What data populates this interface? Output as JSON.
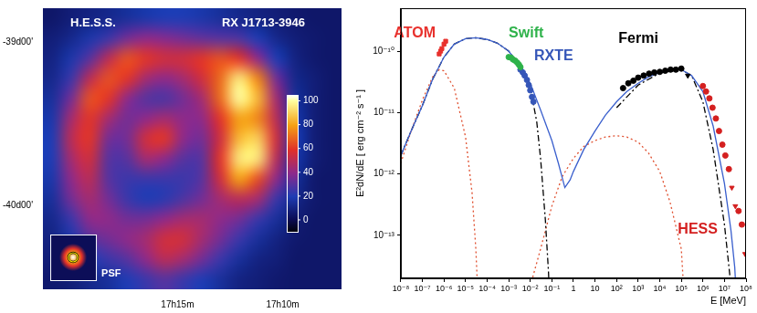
{
  "chart_data": [
    {
      "type": "heatmap",
      "title": "H.E.S.S.",
      "subtitle": "RX J1713-3946",
      "annotations": [
        "PSF"
      ],
      "xlim": [
        21.4,
        7.2
      ],
      "xticks": [
        {
          "value": 15,
          "label": "17h15m"
        },
        {
          "value": 10,
          "label": "17h10m"
        }
      ],
      "ylim": [
        -40.51,
        -38.79
      ],
      "yticks": [
        {
          "value": -39,
          "label": "-39d00'"
        },
        {
          "value": -40,
          "label": "-40d00'"
        }
      ],
      "grid": false,
      "colorbar_range": [
        -10,
        105
      ],
      "colorbar_ticks": [
        0,
        20,
        40,
        60,
        80,
        100
      ],
      "cells": [
        [
          5,
          8,
          10,
          12,
          15,
          18,
          20,
          20,
          18,
          15,
          12,
          10,
          8,
          6,
          5,
          5
        ],
        [
          8,
          12,
          18,
          25,
          35,
          40,
          38,
          35,
          32,
          30,
          28,
          20,
          12,
          8,
          6,
          5
        ],
        [
          10,
          18,
          30,
          50,
          65,
          60,
          55,
          55,
          60,
          65,
          60,
          40,
          20,
          10,
          6,
          5
        ],
        [
          12,
          25,
          50,
          65,
          60,
          45,
          40,
          45,
          55,
          70,
          95,
          75,
          35,
          12,
          8,
          5
        ],
        [
          15,
          35,
          65,
          60,
          40,
          30,
          28,
          35,
          45,
          70,
          100,
          85,
          45,
          15,
          8,
          5
        ],
        [
          18,
          45,
          60,
          45,
          35,
          40,
          45,
          40,
          40,
          60,
          80,
          75,
          50,
          18,
          8,
          5
        ],
        [
          20,
          50,
          60,
          35,
          35,
          55,
          60,
          40,
          35,
          55,
          85,
          90,
          55,
          20,
          8,
          5
        ],
        [
          20,
          45,
          55,
          30,
          30,
          45,
          40,
          30,
          30,
          60,
          95,
          95,
          50,
          18,
          8,
          5
        ],
        [
          18,
          40,
          50,
          30,
          25,
          25,
          25,
          25,
          30,
          55,
          80,
          65,
          40,
          15,
          6,
          5
        ],
        [
          15,
          35,
          45,
          35,
          25,
          20,
          22,
          28,
          35,
          45,
          50,
          45,
          25,
          12,
          6,
          5
        ],
        [
          12,
          25,
          40,
          40,
          35,
          35,
          40,
          45,
          45,
          40,
          35,
          25,
          15,
          8,
          5,
          5
        ],
        [
          10,
          18,
          30,
          35,
          40,
          45,
          55,
          55,
          45,
          35,
          25,
          15,
          10,
          6,
          5,
          5
        ],
        [
          8,
          12,
          20,
          25,
          30,
          40,
          50,
          45,
          35,
          25,
          15,
          10,
          8,
          5,
          5,
          5
        ],
        [
          6,
          8,
          12,
          15,
          20,
          25,
          30,
          25,
          20,
          15,
          10,
          8,
          6,
          5,
          5,
          5
        ]
      ]
    },
    {
      "type": "scatter",
      "log": true,
      "grid": false,
      "x_label": "E [MeV]",
      "y_label": "E²dN/dE [ erg cm⁻² s⁻¹ ]",
      "xlim": [
        1e-08,
        100000000.0
      ],
      "xticks": [
        {
          "value": 1e-08,
          "label": "10⁻⁸"
        },
        {
          "value": 1e-07,
          "label": "10⁻⁷"
        },
        {
          "value": 1e-06,
          "label": "10⁻⁶"
        },
        {
          "value": 1e-05,
          "label": "10⁻⁵"
        },
        {
          "value": 0.0001,
          "label": "10⁻⁴"
        },
        {
          "value": 0.001,
          "label": "10⁻³"
        },
        {
          "value": 0.01,
          "label": "10⁻²"
        },
        {
          "value": 0.1,
          "label": "10⁻¹"
        },
        1,
        10,
        {
          "value": 100,
          "label": "10²"
        },
        {
          "value": 1000,
          "label": "10³"
        },
        {
          "value": 10000.0,
          "label": "10⁴"
        },
        {
          "value": 100000.0,
          "label": "10⁵"
        },
        {
          "value": 1000000.0,
          "label": "10⁶"
        },
        {
          "value": 10000000.0,
          "label": "10⁷"
        },
        {
          "value": 100000000.0,
          "label": "10⁸"
        }
      ],
      "ylim": [
        2e-14,
        5e-10
      ],
      "yticks": [
        {
          "value": 1e-13,
          "label": "10⁻¹³"
        },
        {
          "value": 1e-12,
          "label": "10⁻¹²"
        },
        {
          "value": 1e-11,
          "label": "10⁻¹¹"
        },
        {
          "value": 1e-10,
          "label": "10⁻¹⁰"
        }
      ],
      "series": [
        {
          "name": "ATOM",
          "type": "scatter",
          "marker": "square",
          "color": "#e8312d",
          "x": [
            6e-07,
            7e-07,
            8e-07,
            1e-06,
            1.2e-06
          ],
          "values": [
            9e-11,
            1e-10,
            1.1e-10,
            1.3e-10,
            1.45e-10
          ]
        },
        {
          "name": "Swift",
          "type": "scatter",
          "marker": "circle",
          "color": "#2eb24a",
          "x": [
            0.001,
            0.0013,
            0.0016,
            0.002,
            0.0025,
            0.003,
            0.0035
          ],
          "values": [
            8e-11,
            7.8e-11,
            7.3e-11,
            7e-11,
            6.5e-11,
            6e-11,
            5.5e-11
          ]
        },
        {
          "name": "RXTE",
          "type": "scatter",
          "marker": "circle",
          "color": "#3556b8",
          "x": [
            0.0035,
            0.0045,
            0.0055,
            0.007,
            0.0085,
            0.01,
            0.012,
            0.014
          ],
          "values": [
            5e-11,
            4.5e-11,
            4e-11,
            3.4e-11,
            2.8e-11,
            2.3e-11,
            1.8e-11,
            1.5e-11
          ]
        },
        {
          "name": "Fermi",
          "type": "scatter",
          "marker": "circle",
          "color": "#000000",
          "x": [
            200,
            350,
            600,
            1000,
            1800,
            3200,
            5600,
            10000.0,
            18000.0,
            32000.0,
            56000.0,
            100000.0,
            200000.0
          ],
          "values": [
            2.5e-11,
            3e-11,
            3.3e-11,
            3.7e-11,
            4e-11,
            4.3e-11,
            4.5e-11,
            4.6e-11,
            4.8e-11,
            5e-11,
            5e-11,
            5.2e-11,
            4e-11
          ],
          "upper_limits": [
            false,
            false,
            false,
            false,
            false,
            false,
            false,
            false,
            false,
            false,
            false,
            false,
            true
          ]
        },
        {
          "name": "HESS",
          "type": "scatter",
          "marker": "circle",
          "color": "#d42020",
          "x": [
            1000000.0,
            1400000.0,
            2000000.0,
            2800000.0,
            4000000.0,
            5600000.0,
            8000000.0,
            11000000.0,
            16000000.0,
            22000000.0,
            32000000.0,
            45000000.0,
            64000000.0,
            90000000.0
          ],
          "values": [
            2.7e-11,
            2.2e-11,
            1.7e-11,
            1.2e-11,
            8e-12,
            5e-12,
            3e-12,
            2e-12,
            1.2e-12,
            6e-13,
            3e-13,
            2.5e-13,
            1.5e-13,
            5e-14
          ],
          "upper_limits": [
            false,
            false,
            false,
            false,
            false,
            false,
            false,
            false,
            false,
            true,
            true,
            false,
            false,
            true
          ]
        },
        {
          "type": "line",
          "line_style": "solid",
          "color": "#3a5fcd",
          "x": [
            1e-08,
            3e-08,
            1e-07,
            3e-07,
            1e-06,
            3e-06,
            1e-05,
            3e-05,
            0.0001,
            0.0003,
            0.001,
            0.003,
            0.01,
            0.03,
            0.1,
            0.2,
            0.4,
            0.7,
            1,
            3,
            10,
            30,
            100,
            300,
            1000,
            3000,
            10000.0,
            30000.0,
            100000.0,
            300000.0,
            1000000.0,
            3000000.0,
            10000000.0,
            20000000.0,
            30000000.0,
            50000000.0
          ],
          "values": [
            2e-12,
            5e-12,
            1.3e-11,
            3.5e-11,
            8e-11,
            1.3e-10,
            1.6e-10,
            1.65e-10,
            1.55e-10,
            1.35e-10,
            1e-10,
            6e-11,
            3e-11,
            1.1e-11,
            3.5e-12,
            1.5e-12,
            6e-13,
            8e-13,
            1.1e-12,
            2.5e-12,
            5e-12,
            9e-12,
            1.5e-11,
            2.2e-11,
            3e-11,
            3.8e-11,
            4.5e-11,
            5e-11,
            5e-11,
            4e-11,
            2.2e-11,
            6e-12,
            7e-13,
            1.2e-13,
            3e-14,
            1e-15
          ]
        },
        {
          "type": "line",
          "line_style": "dashdot",
          "color": "#000000",
          "x": [
            1e-08,
            3e-08,
            1e-07,
            3e-07,
            1e-06,
            3e-06,
            1e-05,
            3e-05,
            0.0001,
            0.0003,
            0.001,
            0.003,
            0.01,
            0.02,
            0.03,
            0.05,
            0.07,
            0.1,
            1,
            100,
            1000,
            10000.0,
            100000.0,
            300000.0,
            1000000.0,
            3000000.0,
            10000000.0,
            20000000.0
          ],
          "values": [
            2e-12,
            5e-12,
            1.3e-11,
            3.5e-11,
            8e-11,
            1.3e-10,
            1.6e-10,
            1.65e-10,
            1.55e-10,
            1.35e-10,
            1e-10,
            6e-11,
            2.6e-11,
            7e-12,
            1.8e-12,
            1.8e-13,
            2.5e-14,
            1e-15,
            null,
            1.2e-11,
            2.8e-11,
            4.4e-11,
            5e-11,
            4e-11,
            1.5e-11,
            2.5e-12,
            1.5e-13,
            1.5e-14
          ]
        },
        {
          "type": "line",
          "line_style": "dotted",
          "color": "#e05030",
          "x": [
            1e-08,
            3e-08,
            1e-07,
            3e-07,
            6e-07,
            1e-06,
            3e-06,
            1e-05,
            2e-05,
            3e-05,
            5e-05,
            0.001,
            0.01,
            0.03,
            0.1,
            0.3,
            1,
            3,
            10,
            30,
            100,
            300,
            1000,
            3000,
            10000.0,
            30000.0,
            100000.0,
            200000.0
          ],
          "values": [
            1.5e-12,
            5e-12,
            1.6e-11,
            3.8e-11,
            5e-11,
            4.8e-11,
            2.5e-11,
            4e-12,
            5e-13,
            6e-14,
            1e-15,
            null,
            1.5e-14,
            6e-14,
            3e-13,
            9e-13,
            1.8e-12,
            2.8e-12,
            3.5e-12,
            4e-12,
            4.2e-12,
            4e-12,
            3.3e-12,
            2.2e-12,
            1.1e-12,
            3.5e-13,
            6e-14,
            1e-15
          ]
        }
      ]
    }
  ]
}
